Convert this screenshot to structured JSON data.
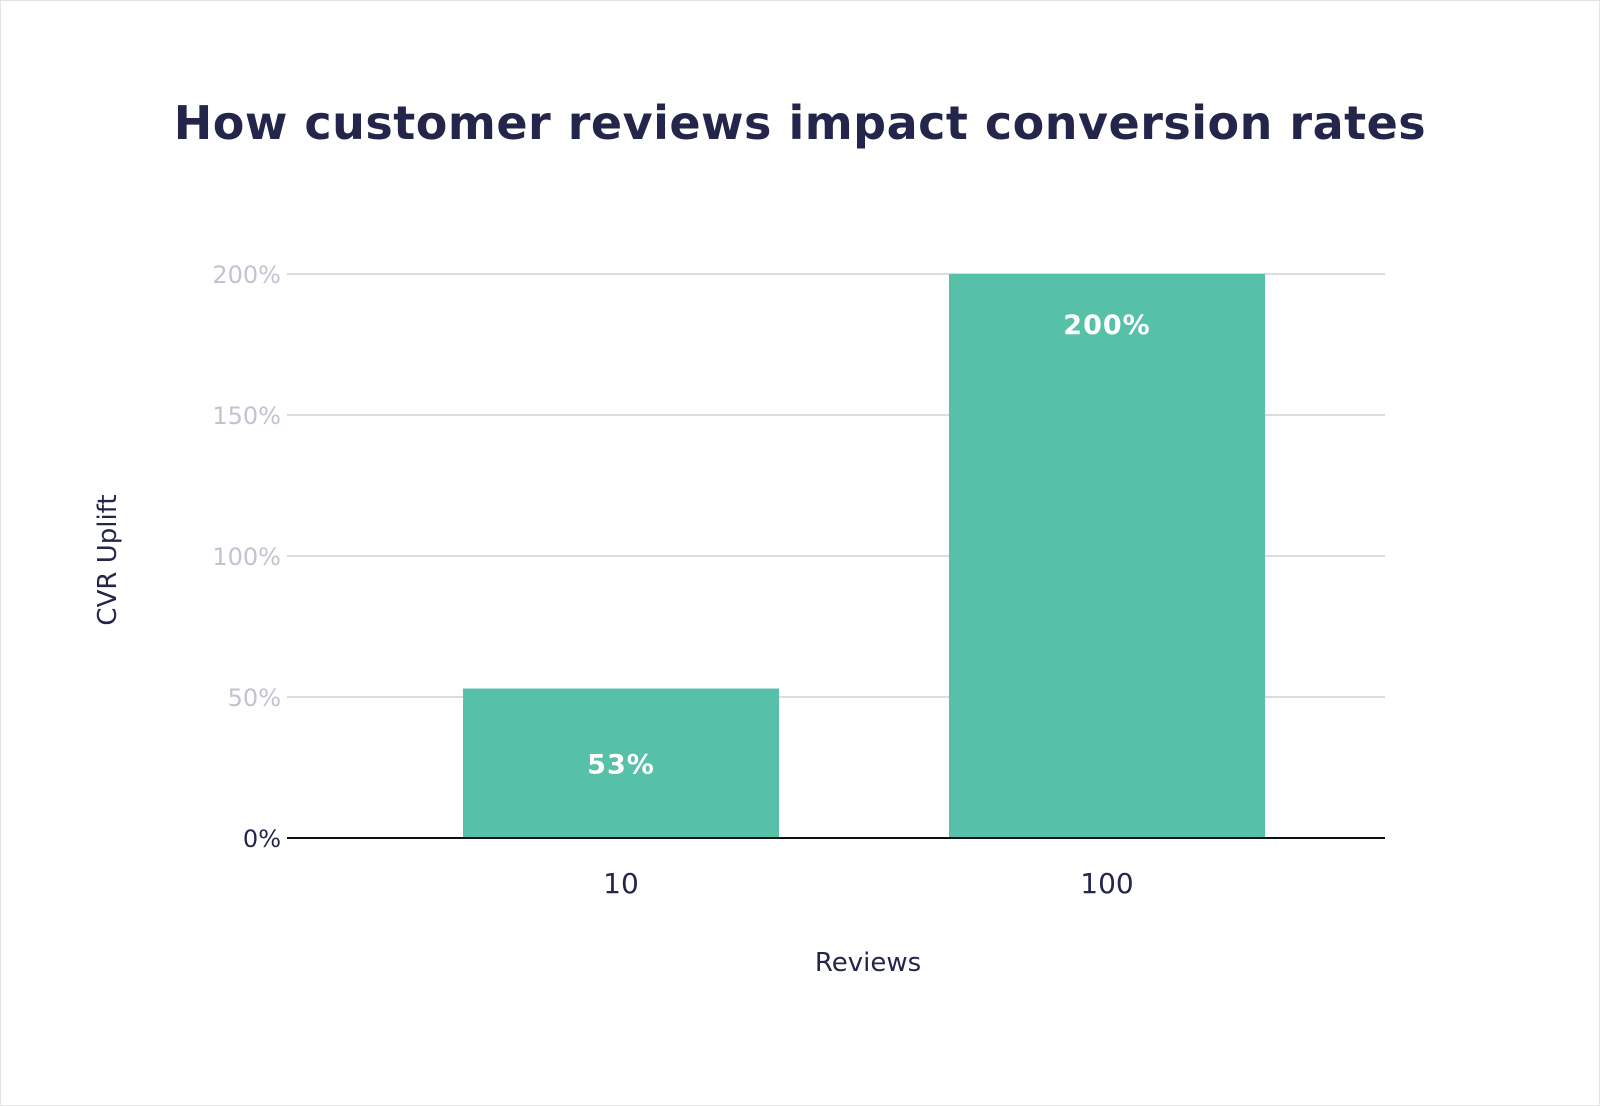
{
  "chart_data": {
    "type": "bar",
    "title": "How customer reviews impact conversion rates",
    "xlabel": "Reviews",
    "ylabel": "CVR Uplift",
    "categories": [
      "10",
      "100"
    ],
    "values": [
      53,
      200
    ],
    "data_labels": [
      "53%",
      "200%"
    ],
    "ylim": [
      0,
      200
    ],
    "yticks": [
      0,
      50,
      100,
      150,
      200
    ],
    "ytick_labels": [
      "0%",
      "50%",
      "100%",
      "150%",
      "200%"
    ],
    "grid": true,
    "legend": "none",
    "colors": {
      "bar": "#57c0a8",
      "title": "#23264a",
      "tick": "#c3c3d0",
      "grid": "#dcdce0",
      "axis": "#111111",
      "label": "#ffffff"
    }
  }
}
